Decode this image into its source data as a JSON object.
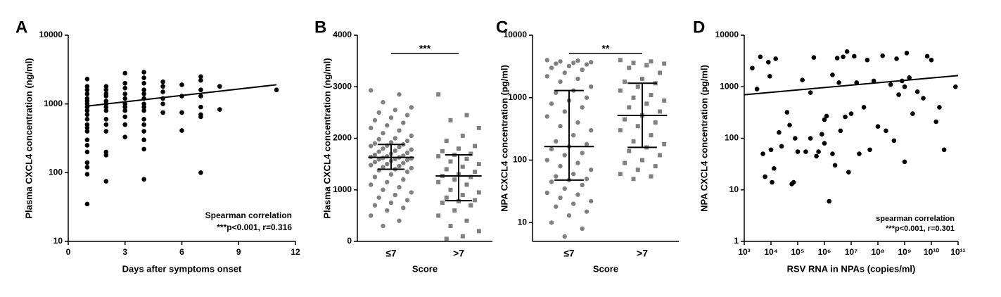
{
  "chart_data": [
    {
      "type": "scatter",
      "panel_label": "A",
      "xlabel": "Days after symptoms onset",
      "ylabel": "Plasma CXCL4 concentration (ng/ml)",
      "color": "#000000",
      "xlim": [
        0,
        12
      ],
      "xticks": [
        0,
        3,
        6,
        9,
        12
      ],
      "ylim": [
        10,
        10000
      ],
      "yticks": [
        10,
        100,
        1000,
        10000
      ],
      "yscale": "log",
      "x": [
        1,
        1,
        1,
        1,
        1,
        1,
        1,
        1,
        1,
        1,
        1,
        1,
        1,
        1,
        1,
        1,
        1,
        1,
        1,
        1,
        1,
        2,
        2,
        2,
        2,
        2,
        2,
        2,
        2,
        2,
        2,
        2,
        2,
        2,
        2,
        3,
        3,
        3,
        3,
        3,
        3,
        3,
        3,
        3,
        3,
        3,
        4,
        4,
        4,
        4,
        4,
        4,
        4,
        4,
        4,
        4,
        4,
        4,
        4,
        4,
        4,
        5,
        5,
        5,
        5,
        5,
        5,
        6,
        6,
        6,
        6,
        7,
        7,
        7,
        7,
        7,
        7,
        7,
        7,
        8,
        8,
        11
      ],
      "y": [
        2300,
        1800,
        1600,
        1400,
        1200,
        1100,
        1000,
        900,
        800,
        700,
        600,
        500,
        450,
        400,
        300,
        250,
        200,
        140,
        120,
        95,
        35,
        1800,
        1600,
        1400,
        1300,
        1100,
        1000,
        900,
        800,
        600,
        500,
        400,
        200,
        180,
        75,
        2800,
        2000,
        1700,
        1400,
        1200,
        1000,
        900,
        800,
        650,
        500,
        330,
        2900,
        2400,
        2000,
        1600,
        1400,
        1200,
        1000,
        900,
        800,
        600,
        500,
        400,
        300,
        220,
        80,
        2100,
        1800,
        1500,
        1200,
        1000,
        750,
        1900,
        1300,
        750,
        410,
        2500,
        2200,
        1600,
        1300,
        900,
        700,
        650,
        100,
        1800,
        830,
        1600
      ],
      "fit": {
        "x": [
          1,
          11
        ],
        "y": [
          930,
          1900
        ]
      },
      "annotations": [
        "Spearman correlation",
        "***p<0.001, r=0.316"
      ]
    },
    {
      "type": "strip",
      "panel_label": "B",
      "xlabel": "Score",
      "ylabel": "Plasma CXCL4 concentration (ng/ml)",
      "color": "#808080",
      "categories": [
        "≤7",
        ">7"
      ],
      "ylim": [
        0,
        4000
      ],
      "yticks": [
        0,
        1000,
        2000,
        3000,
        4000
      ],
      "series": [
        {
          "marker": "circle",
          "values": [
            2930,
            2850,
            2700,
            2600,
            2550,
            2500,
            2450,
            2400,
            2350,
            2300,
            2250,
            2200,
            2150,
            2100,
            2050,
            2000,
            1980,
            1950,
            1920,
            1900,
            1880,
            1860,
            1850,
            1830,
            1800,
            1780,
            1760,
            1740,
            1720,
            1700,
            1680,
            1660,
            1650,
            1640,
            1630,
            1620,
            1610,
            1600,
            1590,
            1580,
            1560,
            1540,
            1520,
            1500,
            1480,
            1460,
            1440,
            1420,
            1400,
            1380,
            1350,
            1300,
            1250,
            1200,
            1150,
            1100,
            1050,
            1000,
            950,
            900,
            850,
            800,
            750,
            700,
            650,
            600,
            500,
            400,
            300
          ]
        },
        {
          "marker": "square",
          "values": [
            2850,
            2450,
            2350,
            2200,
            2050,
            1950,
            1850,
            1800,
            1750,
            1700,
            1680,
            1650,
            1600,
            1550,
            1500,
            1450,
            1400,
            1350,
            1300,
            1270,
            1250,
            1200,
            1150,
            1100,
            1000,
            950,
            900,
            850,
            800,
            780,
            750,
            700,
            600,
            500,
            400,
            300,
            200,
            100,
            50
          ]
        }
      ],
      "summary": [
        {
          "median": 1630,
          "q1": 1400,
          "q3": 1880
        },
        {
          "median": 1270,
          "q1": 790,
          "q3": 1680
        }
      ],
      "significance": "***"
    },
    {
      "type": "strip",
      "panel_label": "C",
      "xlabel": "Score",
      "ylabel": "NPA CXCL4 concentration (pg/ml)",
      "color": "#808080",
      "categories": [
        "≤7",
        ">7"
      ],
      "ylim": [
        5,
        10000
      ],
      "yticks": [
        10,
        100,
        1000,
        10000
      ],
      "yscale": "log",
      "series": [
        {
          "marker": "circle",
          "values": [
            4000,
            3900,
            3800,
            3700,
            3600,
            3500,
            3400,
            3200,
            3000,
            2800,
            2500,
            2200,
            2000,
            1800,
            1500,
            1300,
            1200,
            1000,
            900,
            800,
            700,
            600,
            500,
            400,
            350,
            300,
            250,
            200,
            180,
            165,
            150,
            130,
            120,
            100,
            90,
            80,
            70,
            60,
            55,
            50,
            48,
            45,
            40,
            35,
            30,
            28,
            25,
            22,
            20,
            18,
            15,
            13,
            10,
            8,
            6
          ]
        },
        {
          "marker": "square",
          "values": [
            4000,
            3800,
            3600,
            3500,
            3300,
            3000,
            2500,
            2000,
            1800,
            1700,
            1500,
            1300,
            1100,
            1000,
            900,
            800,
            700,
            600,
            520,
            450,
            400,
            350,
            300,
            250,
            200,
            180,
            160,
            140,
            120,
            100,
            90,
            80,
            70,
            60,
            55,
            50
          ]
        }
      ],
      "summary": [
        {
          "median": 165,
          "q1": 48,
          "q3": 1300
        },
        {
          "median": 520,
          "q1": 160,
          "q3": 1700
        }
      ],
      "significance": "**"
    },
    {
      "type": "scatter",
      "panel_label": "D",
      "xlabel": "RSV RNA in NPAs (copies/ml)",
      "ylabel": "NPA CXCL4 concentration (pg/ml)",
      "color": "#000000",
      "xscale": "log",
      "yscale": "log",
      "xlim": [
        1000,
        100000000000
      ],
      "xticks": [
        {
          "value": 1000,
          "label": "10³"
        },
        {
          "value": 10000,
          "label": "10⁴"
        },
        {
          "value": 100000,
          "label": "10⁵"
        },
        {
          "value": 1000000,
          "label": "10⁶"
        },
        {
          "value": 10000000,
          "label": "10⁷"
        },
        {
          "value": 100000000,
          "label": "10⁸"
        },
        {
          "value": 1000000000,
          "label": "10⁹"
        },
        {
          "value": 10000000000,
          "label": "10¹⁰"
        },
        {
          "value": 100000000000,
          "label": "10¹¹"
        }
      ],
      "ylim": [
        1,
        10000
      ],
      "yticks": [
        1,
        10,
        100,
        1000,
        10000
      ],
      "x": [
        2000.0,
        3000.0,
        4000.0,
        5000.0,
        6000.0,
        8000.0,
        9000.0,
        10000.0,
        11000.0,
        13000.0,
        15000.0,
        25000.0,
        40000.0,
        50000.0,
        60000.0,
        70000.0,
        80000.0,
        100000.0,
        150000.0,
        200000.0,
        300000.0,
        400000.0,
        500000.0,
        600000.0,
        800000.0,
        1000000.0,
        1200000.0,
        1500000.0,
        2000000.0,
        2500000.0,
        3000000.0,
        3500000.0,
        4000000.0,
        5000000.0,
        6000000.0,
        7000000.0,
        8000000.0,
        10000000.0,
        13000000.0,
        16000000.0,
        20000000.0,
        30000000.0,
        40000000.0,
        50000000.0,
        70000000.0,
        100000000.0,
        150000000.0,
        200000000.0,
        300000000.0,
        400000000.0,
        600000000.0,
        800000000.0,
        1000000000.0,
        1200000000.0,
        1500000000.0,
        2000000000.0,
        3000000000.0,
        5000000000.0,
        7000000000.0,
        10000000000.0,
        15000000000.0,
        20000000000.0,
        30000000000.0,
        80000000000.0,
        1000000000.0,
        500000000.0,
        2000000.0,
        1000000.0,
        300000.0,
        20000.0
      ],
      "y": [
        2300,
        900,
        3800,
        50,
        18,
        3000,
        1600,
        60,
        14,
        26,
        3500,
        70,
        320,
        180,
        13,
        14,
        100,
        55,
        1350,
        55,
        770,
        3700,
        45,
        55,
        120,
        80,
        270,
        6,
        1700,
        30,
        3600,
        1200,
        140,
        3800,
        260,
        4800,
        22,
        300,
        3900,
        1200,
        50,
        400,
        3300,
        60,
        1300,
        170,
        4000,
        140,
        1100,
        90,
        700,
        1300,
        35,
        4500,
        1500,
        300,
        800,
        600,
        3900,
        3300,
        210,
        400,
        60,
        1000,
        1000,
        3500,
        50,
        230,
        100,
        130
      ],
      "fit": {
        "x": [
          1000,
          100000000000
        ],
        "y": [
          700,
          1650
        ]
      },
      "annotations": [
        "spearman correlation",
        "***p<0.001, r=0.301"
      ]
    }
  ]
}
